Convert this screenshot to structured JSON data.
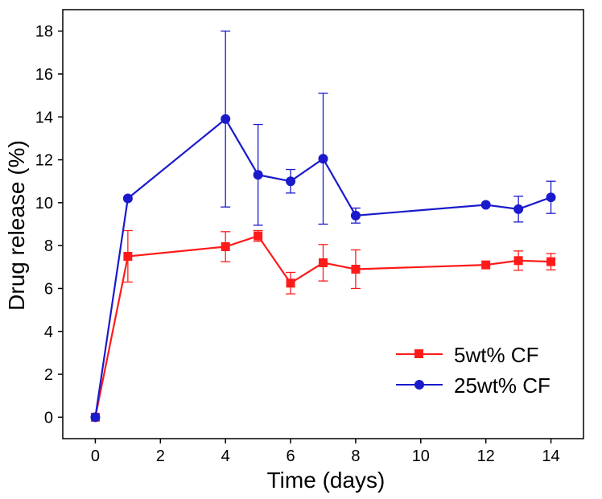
{
  "chart_data": {
    "type": "line",
    "title": "",
    "xlabel": "Time (days)",
    "ylabel": "Drug release (%)",
    "xlim": [
      -1,
      15
    ],
    "ylim": [
      -1,
      19
    ],
    "xticks": [
      0,
      2,
      4,
      6,
      8,
      10,
      12,
      14
    ],
    "yticks": [
      0,
      2,
      4,
      6,
      8,
      10,
      12,
      14,
      16,
      18
    ],
    "grid": false,
    "legend_position": "bottom-right",
    "series": [
      {
        "name": "5wt% CF",
        "color": "#ff1a1a",
        "marker": "square",
        "x": [
          0,
          1,
          4,
          5,
          6,
          7,
          8,
          12,
          13,
          14
        ],
        "values": [
          0,
          7.5,
          7.95,
          8.45,
          6.25,
          7.2,
          6.9,
          7.1,
          7.3,
          7.25
        ],
        "error": [
          0,
          1.2,
          0.7,
          0.25,
          0.5,
          0.85,
          0.9,
          0,
          0.45,
          0.38
        ]
      },
      {
        "name": "25wt% CF",
        "color": "#1a1acc",
        "marker": "circle",
        "x": [
          0,
          1,
          4,
          5,
          6,
          7,
          8,
          12,
          13,
          14
        ],
        "values": [
          0,
          10.2,
          13.9,
          11.3,
          11.0,
          12.05,
          9.4,
          9.9,
          9.7,
          10.25
        ],
        "error": [
          0,
          0,
          4.1,
          2.35,
          0.55,
          3.05,
          0.35,
          0,
          0.6,
          0.75
        ]
      }
    ]
  }
}
